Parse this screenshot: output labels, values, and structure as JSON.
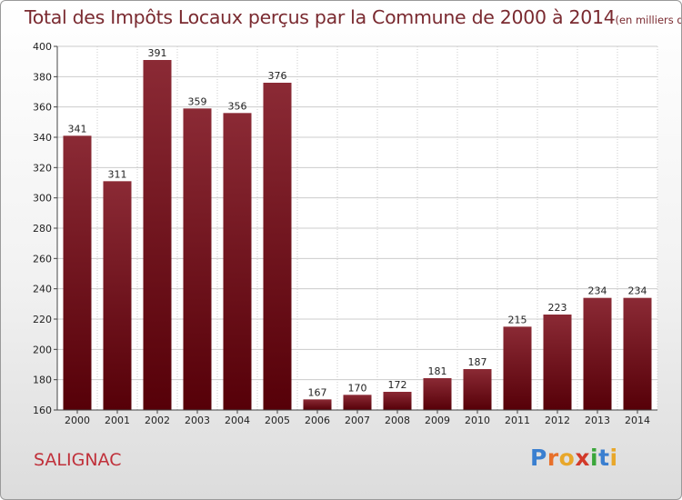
{
  "chart_data": {
    "type": "bar",
    "title": "Total des Impôts Locaux perçus par la Commune de 2000 à 2014",
    "unit": "(en milliers d'€)",
    "categories": [
      "2000",
      "2001",
      "2002",
      "2003",
      "2004",
      "2005",
      "2006",
      "2007",
      "2008",
      "2009",
      "2010",
      "2011",
      "2012",
      "2013",
      "2014"
    ],
    "values": [
      341,
      311,
      391,
      359,
      356,
      376,
      167,
      170,
      172,
      181,
      187,
      215,
      223,
      234,
      234
    ],
    "ylim": [
      160,
      400
    ],
    "yticks": [
      160,
      180,
      200,
      220,
      240,
      260,
      280,
      300,
      320,
      340,
      360,
      380,
      400
    ],
    "grid": true,
    "bar_color_top": "#8b2a35",
    "bar_color_bottom": "#560008",
    "grid_color": "#cccccc"
  },
  "commune": "SALIGNAC",
  "logo": {
    "letters": [
      "P",
      "r",
      "o",
      "x",
      "i",
      "t",
      "i"
    ],
    "colors": [
      "#3a7fd0",
      "#e8702a",
      "#e8a72a",
      "#d23a2a",
      "#3aa63a",
      "#3a7fd0",
      "#e8a72a"
    ]
  }
}
